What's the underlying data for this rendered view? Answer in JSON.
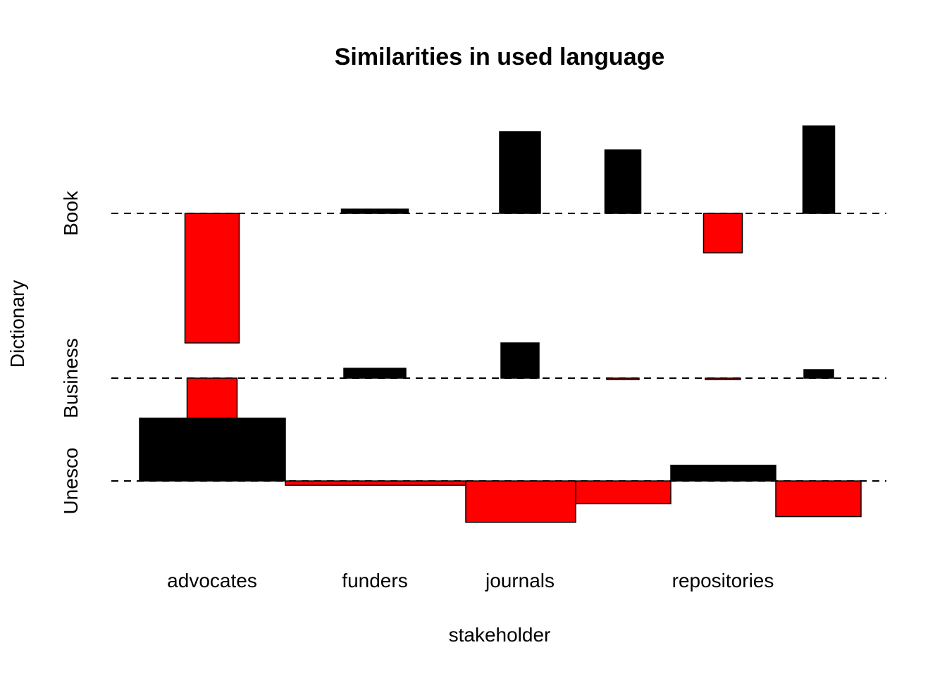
{
  "chart_data": {
    "type": "association-plot",
    "title": "Similarities in used language",
    "xlabel": "stakeholder",
    "ylabel": "Dictionary",
    "x_tick_labels": [
      "advocates",
      "funders",
      "journals",
      "repositories"
    ],
    "rows": [
      "Book",
      "Business",
      "Unesco"
    ],
    "columns": [
      {
        "label": "advocates",
        "width": 1.45
      },
      {
        "label": "",
        "width": 1.75
      },
      {
        "label": "journals",
        "width": 1.1
      },
      {
        "label": "",
        "width": 0.95
      },
      {
        "label": "repositories",
        "width": 1.05
      },
      {
        "label": "",
        "width": 0.85
      }
    ],
    "residuals": {
      "Book": [
        -4.6,
        0.15,
        2.9,
        2.25,
        -1.4,
        3.1
      ],
      "Business": [
        -1.45,
        0.35,
        1.25,
        -0.05,
        -0.05,
        0.3
      ],
      "Unesco": [
        2.2,
        -0.15,
        -1.45,
        -0.8,
        0.55,
        -1.25
      ]
    },
    "row_heights": {
      "Book": 1.0,
      "Business": 0.5,
      "Unesco": 0.2
    },
    "colors": {
      "positive": "#000000",
      "negative": "#ff0000",
      "baseline": "#000000"
    }
  }
}
